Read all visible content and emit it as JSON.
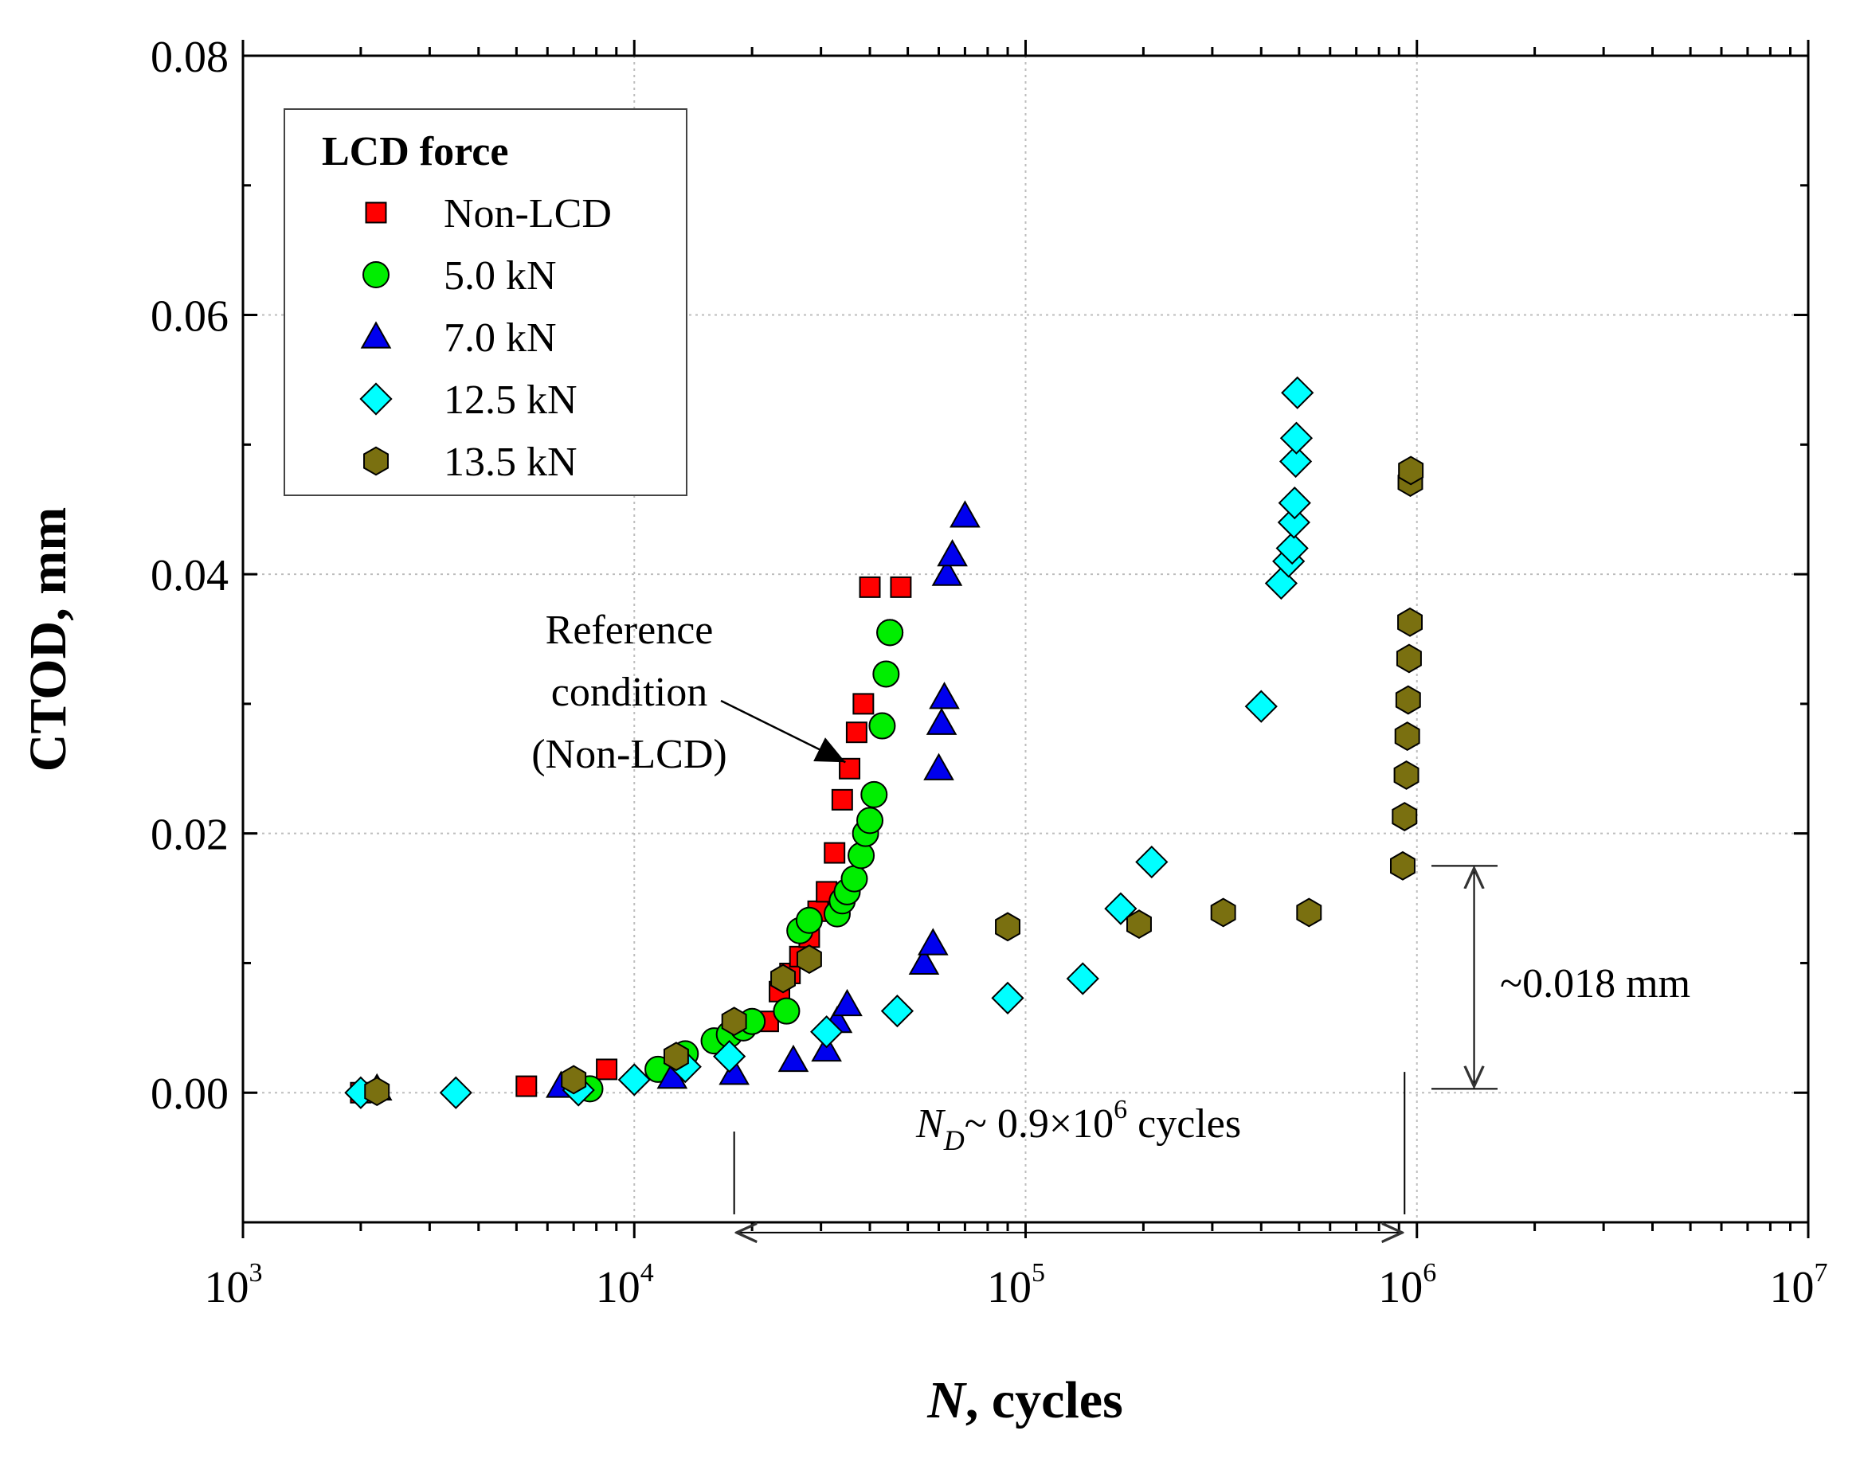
{
  "chart_data": {
    "type": "scatter",
    "title": "",
    "xlabel": "N, cycles",
    "xlabel_italic_part": "N",
    "xlabel_rest": ", cycles",
    "ylabel": "CTOD, mm",
    "xscale": "log",
    "xlim": [
      1000,
      10000000
    ],
    "ylim": [
      -0.01,
      0.08
    ],
    "grid": true,
    "x_ticks": [
      {
        "base": "10",
        "exp": "3",
        "value": 1000
      },
      {
        "base": "10",
        "exp": "4",
        "value": 10000
      },
      {
        "base": "10",
        "exp": "5",
        "value": 100000
      },
      {
        "base": "10",
        "exp": "6",
        "value": 1000000
      },
      {
        "base": "10",
        "exp": "7",
        "value": 10000000
      }
    ],
    "y_ticks": [
      {
        "label": "0.00",
        "value": 0.0
      },
      {
        "label": "0.02",
        "value": 0.02
      },
      {
        "label": "0.04",
        "value": 0.04
      },
      {
        "label": "0.06",
        "value": 0.06
      },
      {
        "label": "0.08",
        "value": 0.08
      }
    ],
    "legend": {
      "title": "LCD force",
      "position": "top-left"
    },
    "series": [
      {
        "name": "Non-LCD",
        "marker": "square",
        "color": "#ff0000",
        "x": [
          2000,
          5300,
          8500,
          22000,
          23500,
          25000,
          26500,
          28000,
          29500,
          31000,
          32500,
          34000,
          35500,
          37000,
          38500,
          40000,
          48000
        ],
        "y": [
          0.0,
          0.0005,
          0.0018,
          0.0055,
          0.0078,
          0.0092,
          0.0105,
          0.012,
          0.014,
          0.0155,
          0.0185,
          0.0226,
          0.025,
          0.0278,
          0.03,
          0.039,
          0.039
        ]
      },
      {
        "name": "5.0 kN",
        "marker": "circle",
        "color": "#00ee00",
        "x": [
          7700,
          11500,
          13500,
          16000,
          17500,
          19000,
          20000,
          24500,
          26500,
          28000,
          33000,
          34000,
          35000,
          36500,
          38000,
          39000,
          40000,
          41000,
          43000,
          44000,
          45000,
          45000
        ],
        "y": [
          0.0003,
          0.0018,
          0.003,
          0.004,
          0.0045,
          0.005,
          0.0055,
          0.0063,
          0.0125,
          0.0133,
          0.0138,
          0.0148,
          0.0155,
          0.0165,
          0.0183,
          0.02,
          0.021,
          0.023,
          0.0283,
          0.0323,
          0.0355,
          0.0355
        ]
      },
      {
        "name": "7.0 kN",
        "marker": "triangle",
        "color": "#0000ee",
        "x": [
          2200,
          6500,
          12500,
          18000,
          25500,
          31000,
          33000,
          35000,
          55000,
          58000,
          60000,
          61000,
          62000,
          63000,
          65000,
          70000
        ],
        "y": [
          0.0003,
          0.0005,
          0.0012,
          0.0015,
          0.0025,
          0.0033,
          0.0055,
          0.0068,
          0.01,
          0.0115,
          0.025,
          0.0285,
          0.0305,
          0.04,
          0.0415,
          0.0445
        ]
      },
      {
        "name": "12.5 kN",
        "marker": "diamond",
        "color": "#00ffff",
        "x": [
          2000,
          3500,
          7200,
          10000,
          13500,
          17500,
          31000,
          47000,
          90000,
          140000,
          175000,
          210000,
          400000,
          450000,
          470000,
          480000,
          485000,
          487000,
          490000,
          492000,
          495000
        ],
        "y": [
          0.0,
          0.0,
          0.0002,
          0.001,
          0.002,
          0.0028,
          0.0047,
          0.0063,
          0.0073,
          0.0088,
          0.0142,
          0.0178,
          0.0298,
          0.0393,
          0.041,
          0.042,
          0.044,
          0.0455,
          0.0487,
          0.0505,
          0.054
        ]
      },
      {
        "name": "13.5 kN",
        "marker": "hexagon",
        "color": "#7a7010",
        "x": [
          2200,
          7000,
          12800,
          18000,
          24000,
          28000,
          90000,
          195000,
          320000,
          530000,
          920000,
          930000,
          940000,
          945000,
          950000,
          955000,
          960000,
          962000,
          965000
        ],
        "y": [
          0.0001,
          0.001,
          0.0028,
          0.0055,
          0.0088,
          0.0103,
          0.0128,
          0.013,
          0.0139,
          0.0139,
          0.0175,
          0.0213,
          0.0245,
          0.0275,
          0.0303,
          0.0335,
          0.0363,
          0.0471,
          0.048
        ]
      }
    ],
    "annotations": {
      "reference_lines": [
        "Reference",
        "condition",
        "(Non-LCD)"
      ],
      "reference_target": {
        "x": 37000,
        "y": 0.025
      },
      "nd_text_main": "N",
      "nd_text_sub": "D",
      "nd_text_mid": "~ 0.9×10",
      "nd_text_exp": "6",
      "nd_text_end": " cycles",
      "nd_range": [
        18000,
        930000
      ],
      "nd_level": -0.0068,
      "ctod_text": "~0.018 mm",
      "ctod_range": [
        0.0003,
        0.0175
      ],
      "ctod_x": 1400000
    }
  }
}
